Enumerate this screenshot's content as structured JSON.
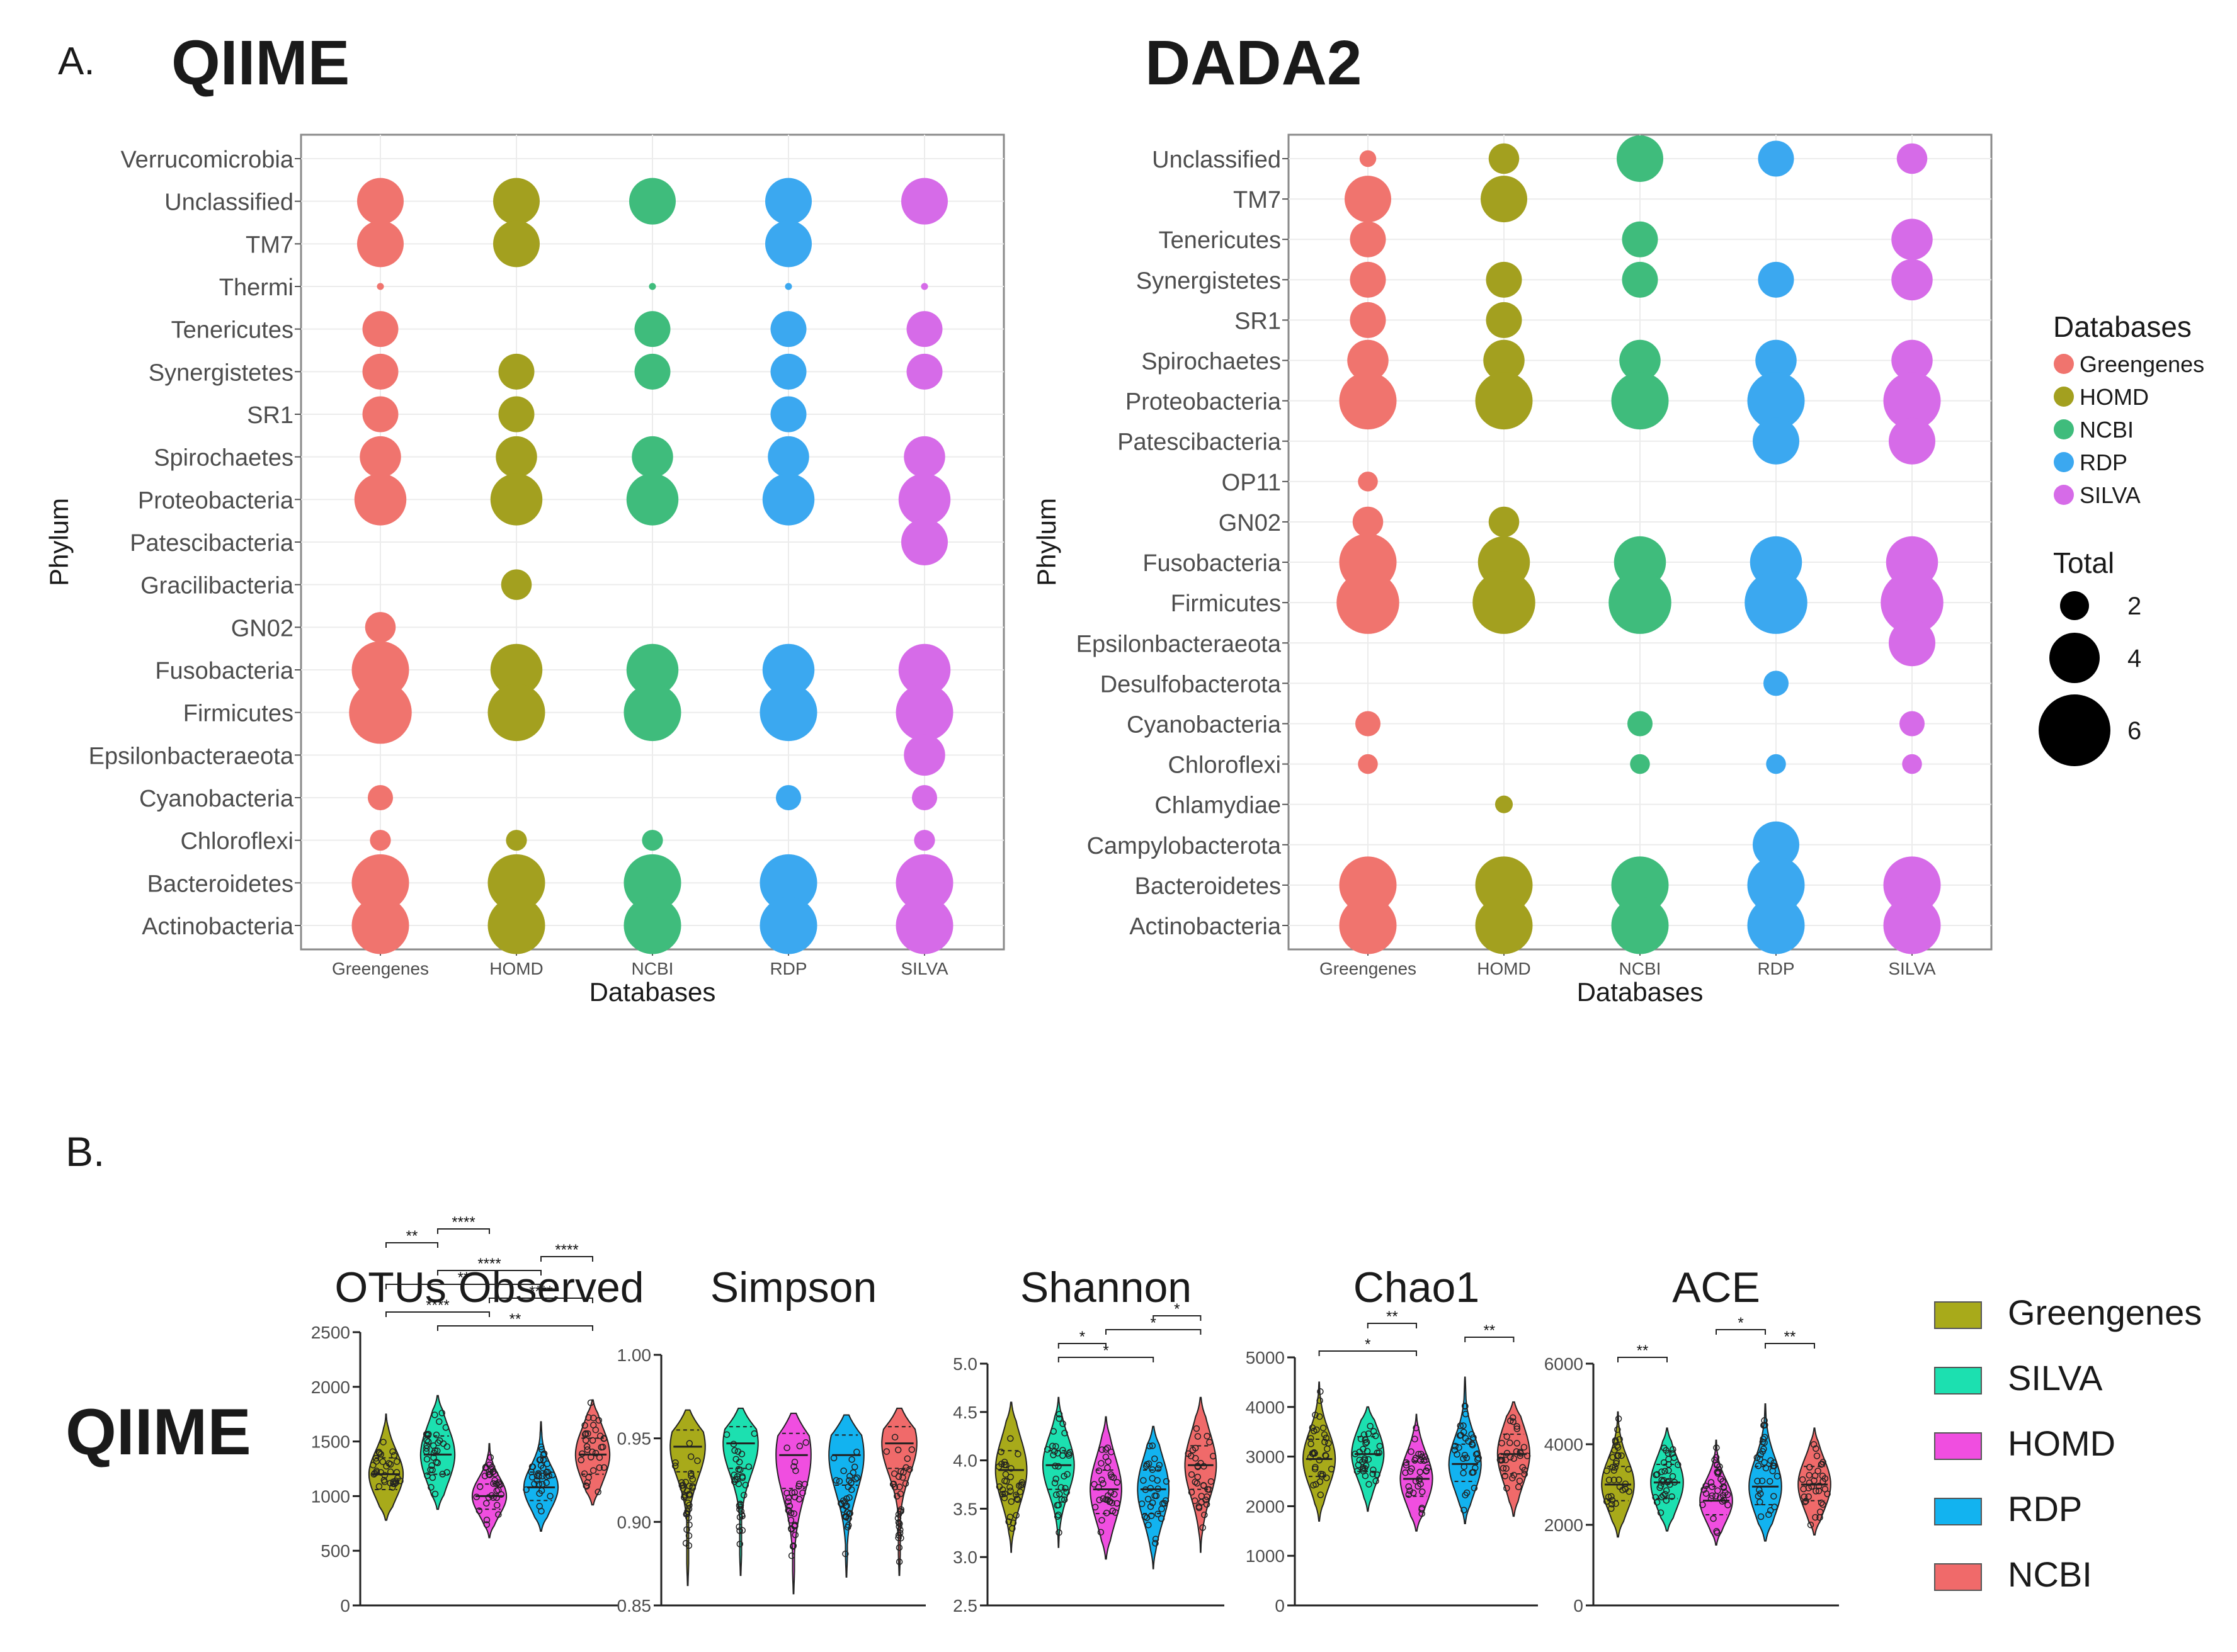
{
  "panel_a_label": "A.",
  "panel_b_label": "B.",
  "palette": {
    "Greengenes": "#F0746E",
    "HOMD": "#A3A01F",
    "NCBI": "#3FBC7C",
    "RDP": "#3BA8F0",
    "SILVA": "#D66BE8"
  },
  "chart_data": [
    {
      "type": "scatter",
      "title": "QIIME",
      "xlabel": "Databases",
      "ylabel": "Phylum",
      "categories": [
        "Greengenes",
        "HOMD",
        "NCBI",
        "RDP",
        "SILVA"
      ],
      "phyla": [
        "Verrucomicrobia",
        "Unclassified",
        "TM7",
        "Thermi",
        "Tenericutes",
        "Synergistetes",
        "SR1",
        "Spirochaetes",
        "Proteobacteria",
        "Patescibacteria",
        "Gracilibacteria",
        "GN02",
        "Fusobacteria",
        "Firmicutes",
        "Epsilonbacteraeota",
        "Cyanobacteria",
        "Chloroflexi",
        "Bacteroidetes",
        "Actinobacteria"
      ],
      "totals": [
        [
          0,
          0,
          0,
          0,
          0
        ],
        [
          4,
          4,
          4,
          4,
          4
        ],
        [
          4,
          4,
          0,
          4,
          0
        ],
        [
          0.3,
          0,
          0.3,
          0.3,
          0.3
        ],
        [
          3,
          0,
          3,
          3,
          3
        ],
        [
          3,
          3,
          3,
          3,
          3
        ],
        [
          3,
          3,
          0,
          3,
          0
        ],
        [
          3.5,
          3.5,
          3.5,
          3.5,
          3.5
        ],
        [
          4.5,
          4.5,
          4.5,
          4.5,
          4.5
        ],
        [
          0,
          0,
          0,
          0,
          4
        ],
        [
          0,
          2.5,
          0,
          0,
          0
        ],
        [
          2.5,
          0,
          0,
          0,
          0
        ],
        [
          5,
          4.5,
          4.5,
          4.5,
          4.5
        ],
        [
          5.5,
          5,
          5,
          5,
          5
        ],
        [
          0,
          0,
          0,
          0,
          3.5
        ],
        [
          2,
          0,
          0,
          2,
          2
        ],
        [
          1.6,
          1.6,
          1.6,
          0,
          1.6
        ],
        [
          5,
          5,
          5,
          5,
          5
        ],
        [
          5,
          5,
          5,
          5,
          5
        ]
      ]
    },
    {
      "type": "scatter",
      "title": "DADA2",
      "xlabel": "Databases",
      "ylabel": "Phylum",
      "categories": [
        "Greengenes",
        "HOMD",
        "NCBI",
        "RDP",
        "SILVA"
      ],
      "phyla": [
        "Unclassified",
        "TM7",
        "Tenericutes",
        "Synergistetes",
        "SR1",
        "Spirochaetes",
        "Proteobacteria",
        "Patescibacteria",
        "OP11",
        "GN02",
        "Fusobacteria",
        "Firmicutes",
        "Epsilonbacteraeota",
        "Desulfobacterota",
        "Cyanobacteria",
        "Chloroflexi",
        "Chlamydiae",
        "Campylobacterota",
        "Bacteroidetes",
        "Actinobacteria"
      ],
      "totals": [
        [
          1.2,
          2.5,
          4,
          3,
          2.5
        ],
        [
          4,
          4,
          0,
          0,
          0
        ],
        [
          3,
          0,
          3,
          0,
          3.5
        ],
        [
          3,
          3,
          3,
          3,
          3.5
        ],
        [
          3,
          3,
          0,
          0,
          0
        ],
        [
          3.5,
          3.5,
          3.5,
          3.5,
          3.5
        ],
        [
          5,
          5,
          5,
          5,
          5
        ],
        [
          0,
          0,
          0,
          4,
          4
        ],
        [
          1.5,
          0,
          0,
          0,
          0
        ],
        [
          2.5,
          2.5,
          0,
          0,
          0
        ],
        [
          5,
          4.5,
          4.5,
          4.5,
          4.5
        ],
        [
          5.5,
          5.5,
          5.5,
          5.5,
          5.5
        ],
        [
          0,
          0,
          0,
          0,
          4
        ],
        [
          0,
          0,
          0,
          2,
          0
        ],
        [
          2,
          0,
          2,
          0,
          2
        ],
        [
          1.5,
          0,
          1.5,
          1.5,
          1.5
        ],
        [
          0,
          1.3,
          0,
          0,
          0
        ],
        [
          0,
          0,
          0,
          4,
          0
        ],
        [
          5,
          5,
          5,
          5,
          5
        ],
        [
          5,
          5,
          5,
          5,
          5
        ]
      ]
    },
    {
      "type": "violin",
      "title": "OTUs Observed",
      "group": "QIIME",
      "ylim": [
        0,
        2500
      ],
      "yticks": [
        0,
        500,
        1000,
        1500,
        2000,
        2500
      ],
      "series": [
        {
          "name": "Greengenes",
          "min": 780,
          "q1": 1060,
          "median": 1200,
          "q3": 1350,
          "max": 1750
        },
        {
          "name": "SILVA",
          "min": 880,
          "q1": 1200,
          "median": 1380,
          "q3": 1550,
          "max": 1920
        },
        {
          "name": "HOMD",
          "min": 620,
          "q1": 880,
          "median": 1000,
          "q3": 1110,
          "max": 1480
        },
        {
          "name": "RDP",
          "min": 680,
          "q1": 960,
          "median": 1080,
          "q3": 1220,
          "max": 1680
        },
        {
          "name": "NCBI",
          "min": 920,
          "q1": 1200,
          "median": 1380,
          "q3": 1530,
          "max": 1880
        }
      ],
      "significance": [
        {
          "from": 1,
          "to": 4,
          "label": "**"
        },
        {
          "from": 0,
          "to": 2,
          "label": "****"
        },
        {
          "from": 2,
          "to": 4,
          "label": "****"
        },
        {
          "from": 0,
          "to": 3,
          "label": "**"
        },
        {
          "from": 1,
          "to": 3,
          "label": "****"
        },
        {
          "from": 3,
          "to": 4,
          "label": "****"
        },
        {
          "from": 0,
          "to": 1,
          "label": "**"
        },
        {
          "from": 1,
          "to": 2,
          "label": "****"
        }
      ]
    },
    {
      "type": "violin",
      "title": "Simpson",
      "group": "QIIME",
      "ylim": [
        0.85,
        1.0
      ],
      "yticks": [
        0.85,
        0.9,
        0.95,
        1.0
      ],
      "ytick_labels": [
        "0.85",
        "0.90",
        "0.95",
        "1.00"
      ],
      "series": [
        {
          "name": "Greengenes",
          "min": 0.862,
          "q1": 0.93,
          "median": 0.945,
          "q3": 0.955,
          "max": 0.967
        },
        {
          "name": "SILVA",
          "min": 0.868,
          "q1": 0.932,
          "median": 0.947,
          "q3": 0.957,
          "max": 0.968
        },
        {
          "name": "HOMD",
          "min": 0.857,
          "q1": 0.92,
          "median": 0.94,
          "q3": 0.953,
          "max": 0.965
        },
        {
          "name": "RDP",
          "min": 0.867,
          "q1": 0.922,
          "median": 0.94,
          "q3": 0.952,
          "max": 0.964
        },
        {
          "name": "NCBI",
          "min": 0.868,
          "q1": 0.932,
          "median": 0.947,
          "q3": 0.957,
          "max": 0.968
        }
      ],
      "significance": []
    },
    {
      "type": "violin",
      "title": "Shannon",
      "group": "QIIME",
      "ylim": [
        2.5,
        5.0
      ],
      "yticks": [
        2.5,
        3.0,
        3.5,
        4.0,
        4.5,
        5.0
      ],
      "ytick_labels": [
        "2.5",
        "3.0",
        "3.5",
        "4.0",
        "4.5",
        "5.0"
      ],
      "series": [
        {
          "name": "Greengenes",
          "min": 3.05,
          "q1": 3.65,
          "median": 3.9,
          "q3": 4.1,
          "max": 4.6
        },
        {
          "name": "SILVA",
          "min": 3.1,
          "q1": 3.7,
          "median": 3.95,
          "q3": 4.1,
          "max": 4.65
        },
        {
          "name": "HOMD",
          "min": 2.98,
          "q1": 3.45,
          "median": 3.7,
          "q3": 3.9,
          "max": 4.45
        },
        {
          "name": "RDP",
          "min": 2.88,
          "q1": 3.45,
          "median": 3.7,
          "q3": 3.9,
          "max": 4.35
        },
        {
          "name": "NCBI",
          "min": 3.05,
          "q1": 3.7,
          "median": 3.95,
          "q3": 4.15,
          "max": 4.65
        }
      ],
      "significance": [
        {
          "from": 1,
          "to": 3,
          "label": "*"
        },
        {
          "from": 1,
          "to": 2,
          "label": "*"
        },
        {
          "from": 2,
          "to": 4,
          "label": "*"
        },
        {
          "from": 3,
          "to": 4,
          "label": "*"
        }
      ]
    },
    {
      "type": "violin",
      "title": "Chao1",
      "group": "QIIME",
      "ylim": [
        0,
        5000
      ],
      "yticks": [
        0,
        1000,
        2000,
        3000,
        4000,
        5000
      ],
      "series": [
        {
          "name": "Greengenes",
          "min": 1700,
          "q1": 2600,
          "median": 2950,
          "q3": 3350,
          "max": 4500
        },
        {
          "name": "SILVA",
          "min": 1900,
          "q1": 2700,
          "median": 3050,
          "q3": 3400,
          "max": 4000
        },
        {
          "name": "HOMD",
          "min": 1500,
          "q1": 2200,
          "median": 2550,
          "q3": 2900,
          "max": 3850
        },
        {
          "name": "RDP",
          "min": 1650,
          "q1": 2500,
          "median": 2850,
          "q3": 3250,
          "max": 4600
        },
        {
          "name": "NCBI",
          "min": 1800,
          "q1": 2650,
          "median": 3050,
          "q3": 3450,
          "max": 4100
        }
      ],
      "significance": [
        {
          "from": 0,
          "to": 2,
          "label": "*"
        },
        {
          "from": 3,
          "to": 4,
          "label": "**"
        },
        {
          "from": 1,
          "to": 2,
          "label": "**"
        }
      ]
    },
    {
      "type": "violin",
      "title": "ACE",
      "group": "QIIME",
      "ylim": [
        0,
        6000
      ],
      "yticks": [
        0,
        2000,
        4000,
        6000
      ],
      "series": [
        {
          "name": "Greengenes",
          "min": 1700,
          "q1": 2600,
          "median": 3000,
          "q3": 3450,
          "max": 4800
        },
        {
          "name": "SILVA",
          "min": 1850,
          "q1": 2650,
          "median": 3050,
          "q3": 3500,
          "max": 4400
        },
        {
          "name": "HOMD",
          "min": 1500,
          "q1": 2250,
          "median": 2600,
          "q3": 2950,
          "max": 4100
        },
        {
          "name": "RDP",
          "min": 1600,
          "q1": 2500,
          "median": 2950,
          "q3": 3450,
          "max": 5000
        },
        {
          "name": "NCBI",
          "min": 1750,
          "q1": 2600,
          "median": 3000,
          "q3": 3450,
          "max": 4400
        }
      ],
      "significance": [
        {
          "from": 0,
          "to": 1,
          "label": "**"
        },
        {
          "from": 3,
          "to": 4,
          "label": "**"
        },
        {
          "from": 2,
          "to": 3,
          "label": "*"
        }
      ]
    }
  ],
  "legend_a": {
    "title": "Databases",
    "items": [
      "Greengenes",
      "HOMD",
      "NCBI",
      "RDP",
      "SILVA"
    ],
    "size_title": "Total",
    "sizes": [
      2,
      4,
      6
    ]
  },
  "violin_palette": {
    "Greengenes": "#A8AA1A",
    "SILVA": "#1CE0B0",
    "HOMD": "#F04EE0",
    "RDP": "#12B3F0",
    "NCBI": "#F06A6A"
  },
  "legend_b": {
    "items": [
      "Greengenes",
      "SILVA",
      "HOMD",
      "RDP",
      "NCBI"
    ]
  },
  "qiime_row_label": "QIIME"
}
